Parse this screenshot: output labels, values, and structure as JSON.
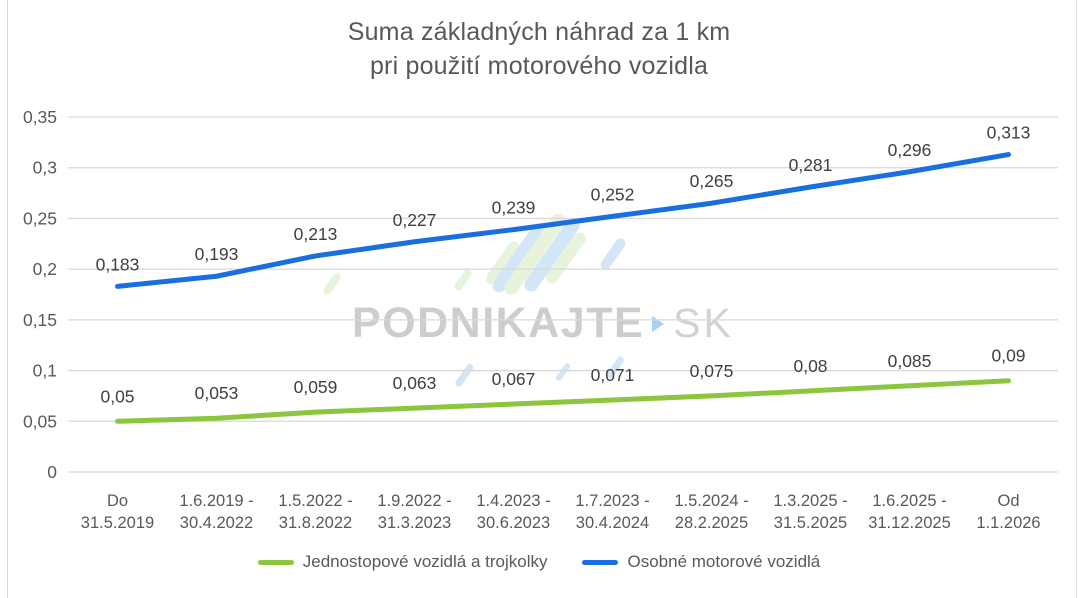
{
  "chart_data": {
    "type": "line",
    "title": "Suma základných náhrad za 1 km pri použití motorového vozidla",
    "title_lines": [
      "Suma základných náhrad za 1 km",
      "pri použití motorového vozidla"
    ],
    "categories": [
      "Do 31.5.2019",
      "1.6.2019 - 30.4.2022",
      "1.5.2022 - 31.8.2022",
      "1.9.2022 - 31.3.2023",
      "1.4.2023 - 30.6.2023",
      "1.7.2023 - 30.4.2024",
      "1.5.2024 - 28.2.2025",
      "1.3.2025 - 31.5.2025",
      "1.6.2025 - 31.12.2025",
      "Od 1.1.2026"
    ],
    "categories_lines": [
      [
        "Do",
        "31.5.2019"
      ],
      [
        "1.6.2019 -",
        "30.4.2022"
      ],
      [
        "1.5.2022 -",
        "31.8.2022"
      ],
      [
        "1.9.2022 -",
        "31.3.2023"
      ],
      [
        "1.4.2023 -",
        "30.6.2023"
      ],
      [
        "1.7.2023 -",
        "30.4.2024"
      ],
      [
        "1.5.2024 -",
        "28.2.2025"
      ],
      [
        "1.3.2025 -",
        "31.5.2025"
      ],
      [
        "1.6.2025 -",
        "31.12.2025"
      ],
      [
        "Od",
        "1.1.2026"
      ]
    ],
    "series": [
      {
        "name": "Jednostopové vozidlá a trojkolky",
        "color": "#8CC63F",
        "values": [
          0.05,
          0.053,
          0.059,
          0.063,
          0.067,
          0.071,
          0.075,
          0.08,
          0.085,
          0.09
        ],
        "labels": [
          "0,05",
          "0,053",
          "0,059",
          "0,063",
          "0,067",
          "0,071",
          "0,075",
          "0,08",
          "0,085",
          "0,09"
        ]
      },
      {
        "name": "Osobné motorové vozidlá",
        "color": "#1A6FE0",
        "values": [
          0.183,
          0.193,
          0.213,
          0.227,
          0.239,
          0.252,
          0.265,
          0.281,
          0.296,
          0.313
        ],
        "labels": [
          "0,183",
          "0,193",
          "0,213",
          "0,227",
          "0,239",
          "0,252",
          "0,265",
          "0,281",
          "0,296",
          "0,313"
        ]
      }
    ],
    "y_ticks": [
      {
        "value": 0,
        "label": "0"
      },
      {
        "value": 0.05,
        "label": "0,05"
      },
      {
        "value": 0.1,
        "label": "0,1"
      },
      {
        "value": 0.15,
        "label": "0,15"
      },
      {
        "value": 0.2,
        "label": "0,2"
      },
      {
        "value": 0.25,
        "label": "0,25"
      },
      {
        "value": 0.3,
        "label": "0,3"
      },
      {
        "value": 0.35,
        "label": "0,35"
      }
    ],
    "ylim": [
      0,
      0.35
    ],
    "grid": true,
    "legend_position": "bottom",
    "colors": {
      "gridline": "#D9D9D9",
      "axis_text": "#595959",
      "data_label": "#3F3F3F",
      "title_text": "#58585B"
    }
  },
  "watermark": {
    "brand": "PODNIKAJTE",
    "tld": "SK",
    "arrow_icon": "play-arrow-icon",
    "logo_icon": "striped-leaf-logo-icon",
    "colors": {
      "stripe_blue": "#AFD3F2",
      "stripe_green": "#D5EBBE",
      "arrow": "#63A8E8"
    }
  }
}
